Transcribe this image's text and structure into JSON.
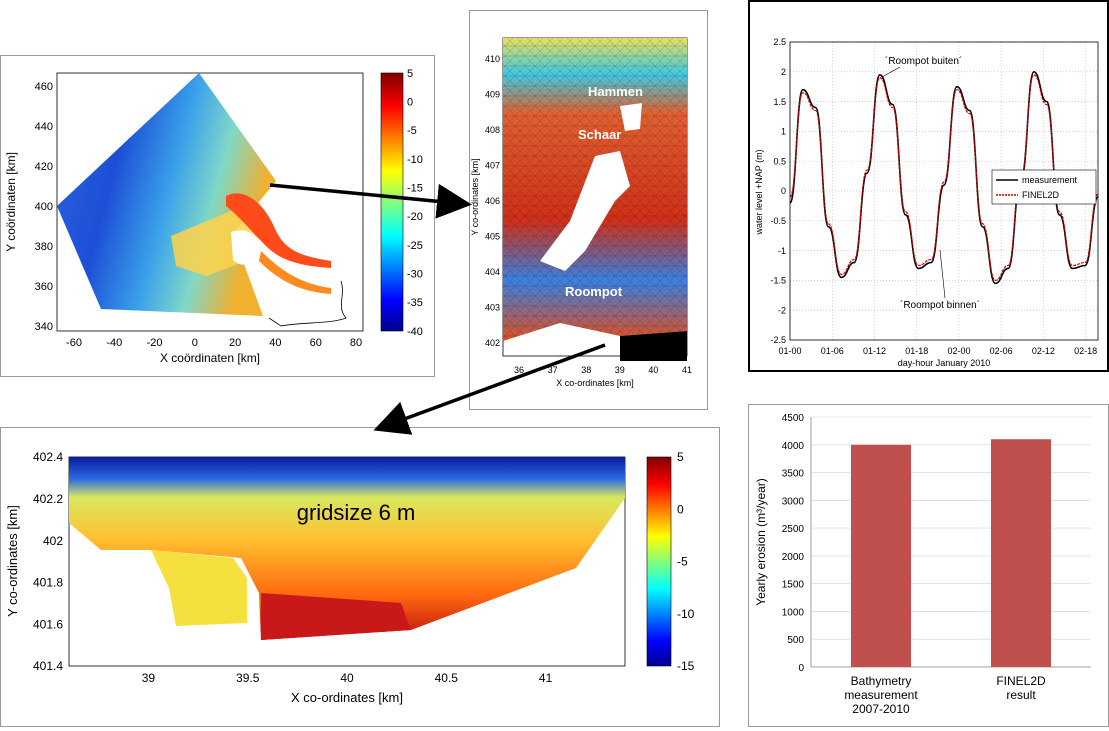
{
  "chart_data": [
    {
      "type": "heatmap",
      "xlabel": "X coördinaten [km]",
      "ylabel": "Y coördinaten [km]",
      "xticks": [
        "-60",
        "-40",
        "-20",
        "0",
        "20",
        "40",
        "60",
        "80"
      ],
      "yticks": [
        "340",
        "360",
        "380",
        "400",
        "420",
        "440",
        "460"
      ],
      "xlim": [
        -70,
        90
      ],
      "ylim": [
        335,
        467
      ],
      "colorbar_ticks": [
        "5",
        "0",
        "-5",
        "-10",
        "-15",
        "-20",
        "-25",
        "-30",
        "-35",
        "-40"
      ],
      "colorbar_range": [
        -40,
        5
      ],
      "grid": false
    },
    {
      "type": "heatmap",
      "xlabel": "X co-ordinates [km]",
      "ylabel": "Y co-ordinates [km]",
      "xticks": [
        "36",
        "37",
        "38",
        "39",
        "40",
        "41"
      ],
      "yticks": [
        "402",
        "403",
        "404",
        "405",
        "406",
        "407",
        "408",
        "409",
        "410"
      ],
      "xlim": [
        35.6,
        41
      ],
      "ylim": [
        401.8,
        410.5
      ],
      "annotations": [
        "Hammen",
        "Schaar",
        "Roompot"
      ],
      "grid": false
    },
    {
      "type": "line",
      "xlabel": "day-hour January 2010",
      "ylabel": "water level +NAP (m)",
      "xticks": [
        "01-00",
        "01-06",
        "01-12",
        "01-18",
        "02-00",
        "02-06",
        "02-12",
        "02-18"
      ],
      "yticks": [
        "2.5",
        "2",
        "1.5",
        "1",
        "0.5",
        "0",
        "-0.5",
        "-1",
        "-1.5",
        "-2",
        "-2.5"
      ],
      "ylim": [
        -2.5,
        2.5
      ],
      "grid": true,
      "legend": "right",
      "annotations": [
        "´Roompot buiten´",
        "´Roompot binnen´"
      ],
      "series": [
        {
          "name": "measurement",
          "color": "#000000",
          "x": [
            0,
            2,
            4,
            6,
            8,
            10,
            12,
            14,
            16,
            18,
            20,
            22,
            24,
            26,
            28,
            30,
            32,
            34,
            36,
            38,
            40,
            42,
            44,
            46,
            48
          ],
          "values": [
            -0.2,
            1.7,
            1.4,
            -0.6,
            -1.45,
            -1.2,
            0.3,
            1.95,
            1.45,
            -0.4,
            -1.3,
            -1.2,
            0.1,
            1.75,
            1.35,
            -0.6,
            -1.55,
            -1.3,
            0.2,
            2.0,
            1.5,
            -0.4,
            -1.3,
            -1.25,
            -0.1
          ]
        },
        {
          "name": "FINEL2D",
          "color": "#cc0000",
          "x": [
            0,
            2,
            4,
            6,
            8,
            10,
            12,
            14,
            16,
            18,
            20,
            22,
            24,
            26,
            28,
            30,
            32,
            34,
            36,
            38,
            40,
            42,
            44,
            46,
            48
          ],
          "values": [
            -0.1,
            1.65,
            1.35,
            -0.55,
            -1.4,
            -1.15,
            0.35,
            1.9,
            1.4,
            -0.35,
            -1.25,
            -1.15,
            0.15,
            1.7,
            1.3,
            -0.55,
            -1.5,
            -1.25,
            0.25,
            1.95,
            1.45,
            -0.35,
            -1.25,
            -1.2,
            -0.05
          ]
        }
      ]
    },
    {
      "type": "heatmap",
      "xlabel": "X co-ordinates [km]",
      "ylabel": "Y co-ordinates [km]",
      "xticks": [
        "39",
        "39.5",
        "40",
        "40.5",
        "41"
      ],
      "yticks": [
        "402.4",
        "402.2",
        "402",
        "401.8",
        "401.6",
        "401.4"
      ],
      "xlim": [
        38.6,
        41.4
      ],
      "ylim": [
        401.4,
        402.4
      ],
      "colorbar_ticks": [
        "5",
        "0",
        "-5",
        "-10",
        "-15"
      ],
      "colorbar_range": [
        -15,
        5
      ],
      "annotations": [
        "gridsize 6 m"
      ],
      "grid": false
    },
    {
      "type": "bar",
      "ylabel": "Yearly erosion (m³/year)",
      "categories": [
        [
          "Bathymetry",
          "measurement",
          "2007-2010"
        ],
        [
          "FINEL2D",
          "result"
        ]
      ],
      "values": [
        4000,
        4100
      ],
      "ylim": [
        0,
        4500
      ],
      "yticks": [
        "0",
        "500",
        "1000",
        "1500",
        "2000",
        "2500",
        "3000",
        "3500",
        "4000",
        "4500"
      ],
      "bar_color": "#c0504d"
    }
  ]
}
